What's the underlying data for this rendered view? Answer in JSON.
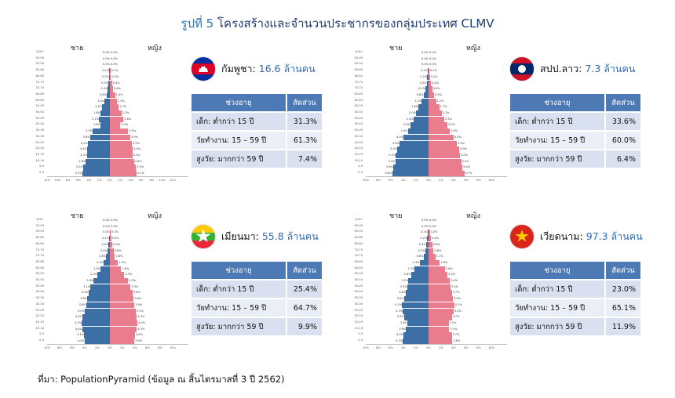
{
  "title": {
    "prefix": "รูปที่ 5",
    "text": "โครงสร้างและจำนวนประชากรของกลุ่มประเทศ CLMV"
  },
  "source": "ที่มา: PopulationPyramid (ข้อมูล ณ สิ้นไตรมาสที่ 3 ปี 2562)",
  "labels": {
    "male": "ชาย",
    "female": "หญิง"
  },
  "table_headers": {
    "age": "ช่วงอายุ",
    "share": "สัดส่วน"
  },
  "countries": [
    {
      "name": "กัมพูชา:",
      "pop": "16.6 ล้านคน",
      "rows": [
        {
          "label": "เด็ก: ต่ำกว่า 15 ปี",
          "value": "31.3%"
        },
        {
          "label": "วัยทำงาน: 15 – 59 ปี",
          "value": "61.3%"
        },
        {
          "label": "สูงวัย: มากกว่า 59 ปี",
          "value": "7.4%"
        }
      ]
    },
    {
      "name": "สปป.ลาว:",
      "pop": "7.3 ล้านคน",
      "rows": [
        {
          "label": "เด็ก: ต่ำกว่า 15 ปี",
          "value": "33.6%"
        },
        {
          "label": "วัยทำงาน: 15 – 59 ปี",
          "value": "60.0%"
        },
        {
          "label": "สูงวัย: มากกว่า 59 ปี",
          "value": "6.4%"
        }
      ]
    },
    {
      "name": "เมียนมา:",
      "pop": "55.8 ล้านคน",
      "rows": [
        {
          "label": "เด็ก: ต่ำกว่า 15 ปี",
          "value": "25.4%"
        },
        {
          "label": "วัยทำงาน: 15 – 59 ปี",
          "value": "64.7%"
        },
        {
          "label": "สูงวัย: มากกว่า 59 ปี",
          "value": "9.9%"
        }
      ]
    },
    {
      "name": "เวียดนาม:",
      "pop": "97.3 ล้านคน",
      "rows": [
        {
          "label": "เด็ก: ต่ำกว่า 15 ปี",
          "value": "23.0%"
        },
        {
          "label": "วัยทำงาน: 15 – 59 ปี",
          "value": "65.1%"
        },
        {
          "label": "สูงวัย: มากกว่า 59 ปี",
          "value": "11.9%"
        }
      ]
    }
  ],
  "chart_data": [
    {
      "type": "bar",
      "title": "กัมพูชา population pyramid",
      "categories": [
        "100+",
        "95-99",
        "90-94",
        "85-89",
        "80-84",
        "75-79",
        "70-74",
        "65-69",
        "60-64",
        "55-59",
        "50-54",
        "45-49",
        "40-44",
        "35-39",
        "30-34",
        "25-29",
        "20-24",
        "15-19",
        "10-14",
        "5-9",
        "0-4"
      ],
      "series": [
        {
          "name": "ชาย",
          "values": [
            0.0,
            0.0,
            0.0,
            0.1,
            0.2,
            0.3,
            0.4,
            0.6,
            1.0,
            1.5,
            1.8,
            2.1,
            1.8,
            3.3,
            3.8,
            4.2,
            4.4,
            4.3,
            4.6,
            5.1,
            5.3
          ]
        },
        {
          "name": "หญิง",
          "values": [
            0.0,
            0.0,
            0.0,
            0.1,
            0.2,
            0.4,
            0.6,
            1.0,
            1.3,
            1.7,
            2.2,
            2.6,
            2.0,
            3.5,
            3.9,
            4.2,
            4.4,
            4.3,
            4.6,
            5.0,
            5.1
          ]
        }
      ],
      "xlim": [
        -12,
        12
      ],
      "xticks": [
        "12%",
        "10%",
        "8%",
        "6%",
        "4%",
        "2%",
        "0%",
        "2%",
        "4%",
        "6%",
        "8%",
        "10%",
        "12%"
      ]
    },
    {
      "type": "bar",
      "title": "สปป.ลาว population pyramid",
      "categories": [
        "100+",
        "95-99",
        "90-94",
        "85-89",
        "80-84",
        "75-79",
        "70-74",
        "65-69",
        "60-64",
        "55-59",
        "50-54",
        "45-49",
        "40-44",
        "35-39",
        "30-34",
        "25-29",
        "20-24",
        "15-19",
        "10-14",
        "5-9",
        "0-4"
      ],
      "series": [
        {
          "name": "ชาย",
          "values": [
            0.0,
            0.0,
            0.0,
            0.1,
            0.2,
            0.3,
            0.5,
            0.8,
            1.1,
            1.6,
            2.0,
            2.4,
            2.9,
            3.3,
            4.0,
            4.6,
            5.0,
            5.2,
            5.3,
            5.6,
            5.8
          ]
        },
        {
          "name": "หญิง",
          "values": [
            0.0,
            0.0,
            0.0,
            0.1,
            0.2,
            0.4,
            0.6,
            0.9,
            1.2,
            1.7,
            2.1,
            2.5,
            3.0,
            3.4,
            4.0,
            4.5,
            4.9,
            5.0,
            5.2,
            5.4,
            5.7
          ]
        }
      ],
      "xlim": [
        -10,
        10
      ],
      "xticks": [
        "10%",
        "8%",
        "6%",
        "4%",
        "2%",
        "0%",
        "2%",
        "4%",
        "6%",
        "8%",
        "10%"
      ]
    },
    {
      "type": "bar",
      "title": "เมียนมา population pyramid",
      "categories": [
        "100+",
        "95-99",
        "90-94",
        "85-89",
        "80-84",
        "75-79",
        "70-74",
        "65-69",
        "60-64",
        "55-59",
        "50-54",
        "45-49",
        "40-44",
        "35-39",
        "30-34",
        "25-29",
        "20-24",
        "15-19",
        "10-14",
        "5-9",
        "0-4"
      ],
      "series": [
        {
          "name": "ชาย",
          "values": [
            0.0,
            0.0,
            0.0,
            0.1,
            0.2,
            0.4,
            0.6,
            1.0,
            1.5,
            2.0,
            2.6,
            3.1,
            3.4,
            3.6,
            3.8,
            4.0,
            4.4,
            4.5,
            4.4,
            4.1,
            4.0
          ]
        },
        {
          "name": "หญิง",
          "values": [
            0.0,
            0.0,
            0.1,
            0.2,
            0.4,
            0.6,
            0.8,
            1.3,
            1.8,
            2.3,
            2.9,
            3.3,
            3.6,
            3.8,
            3.9,
            4.1,
            4.3,
            4.4,
            4.3,
            4.0,
            3.9
          ]
        }
      ],
      "xlim": [
        -10,
        10
      ],
      "xticks": [
        "10%",
        "8%",
        "6%",
        "4%",
        "2%",
        "0%",
        "2%",
        "4%",
        "6%",
        "8%",
        "10%"
      ]
    },
    {
      "type": "bar",
      "title": "เวียดนาม population pyramid",
      "categories": [
        "100+",
        "95-99",
        "90-94",
        "85-89",
        "80-84",
        "75-79",
        "70-74",
        "65-69",
        "60-64",
        "55-59",
        "50-54",
        "45-49",
        "40-44",
        "35-39",
        "30-34",
        "25-29",
        "20-24",
        "15-19",
        "10-14",
        "5-9",
        "0-4"
      ],
      "series": [
        {
          "name": "ชาย",
          "values": [
            0.0,
            0.0,
            0.1,
            0.2,
            0.4,
            0.5,
            0.8,
            1.4,
            2.2,
            2.8,
            3.2,
            3.4,
            3.6,
            3.9,
            4.2,
            4.1,
            3.9,
            3.4,
            3.6,
            4.0,
            4.1
          ]
        },
        {
          "name": "หญิง",
          "values": [
            0.0,
            0.0,
            0.2,
            0.4,
            0.6,
            0.8,
            1.1,
            1.8,
            2.6,
            3.0,
            3.4,
            3.5,
            3.7,
            3.9,
            4.1,
            4.0,
            3.7,
            3.2,
            3.3,
            3.7,
            3.8
          ]
        }
      ],
      "xlim": [
        -10,
        10
      ],
      "xticks": [
        "10%",
        "8%",
        "6%",
        "4%",
        "2%",
        "0%",
        "2%",
        "4%",
        "6%",
        "8%",
        "10%"
      ]
    }
  ]
}
